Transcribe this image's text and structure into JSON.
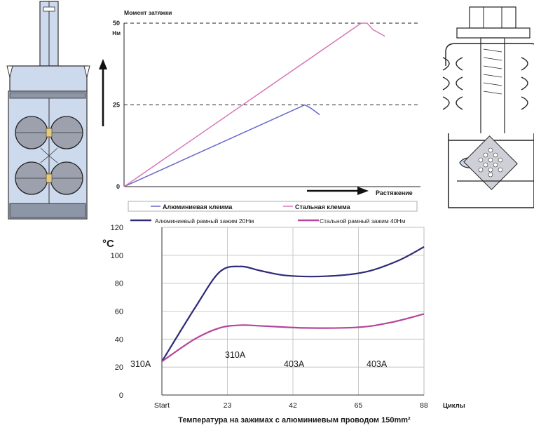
{
  "colors": {
    "aluminum": "#6666cc",
    "steel": "#d678b8",
    "aluminum_frame": "#2e2a78",
    "steel_frame": "#b4449c",
    "clamp_fill": "#cdd9ec",
    "clamp_dark": "#8d96a6"
  },
  "icons": [
    "slotted-clamp-drawing",
    "frame-clamp-drawing",
    "up-arrow-icon",
    "right-arrow-icon"
  ],
  "chart_data": [
    {
      "type": "line",
      "title": "",
      "ylabel": "Момент затяжки",
      "yunit": "Нм",
      "xlabel": "Растяжение",
      "xlim": [
        0,
        100
      ],
      "ylim": [
        0,
        50
      ],
      "yticks": [
        0,
        25,
        50
      ],
      "ytick_labels": [
        "0",
        "25",
        "50"
      ],
      "reference_lines": [
        25,
        50
      ],
      "legend": "bottom",
      "series": [
        {
          "name": "Алюминиевая клемма",
          "points": [
            [
              0,
              0
            ],
            [
              61,
              25
            ],
            [
              63,
              24
            ],
            [
              66,
              22
            ]
          ]
        },
        {
          "name": "Стальная клемма",
          "points": [
            [
              0,
              0
            ],
            [
              80,
              50
            ],
            [
              82,
              50
            ],
            [
              84,
              48
            ],
            [
              88,
              46
            ]
          ]
        }
      ]
    },
    {
      "type": "line",
      "title": "Температура на зажимах с алюминиевым проводом 150mm²",
      "ylabel": "°C",
      "xlabel": "Циклы",
      "categories": [
        "Start",
        "23",
        "42",
        "65",
        "88"
      ],
      "ylim": [
        0,
        120
      ],
      "yticks": [
        0,
        20,
        40,
        60,
        80,
        100,
        120
      ],
      "legend": "top",
      "grid": true,
      "annotations": [
        "310A",
        "310A",
        "403A",
        "403A"
      ],
      "series": [
        {
          "name": "Алюминиевый рамный зажим 20Нм",
          "points": [
            [
              0,
              24
            ],
            [
              0.5,
              62
            ],
            [
              0.88,
              88
            ],
            [
              1.2,
              92
            ],
            [
              1.5,
              89
            ],
            [
              1.9,
              85.5
            ],
            [
              2.5,
              85
            ],
            [
              3.1,
              88
            ],
            [
              3.6,
              96
            ],
            [
              4,
              106
            ]
          ]
        },
        {
          "name": "Стальной рамный зажим 40Нм",
          "points": [
            [
              0,
              24
            ],
            [
              0.5,
              40
            ],
            [
              0.88,
              48
            ],
            [
              1.2,
              50
            ],
            [
              1.5,
              49.5
            ],
            [
              2.2,
              48
            ],
            [
              3,
              48.5
            ],
            [
              3.5,
              52
            ],
            [
              4,
              58
            ]
          ]
        }
      ]
    }
  ]
}
